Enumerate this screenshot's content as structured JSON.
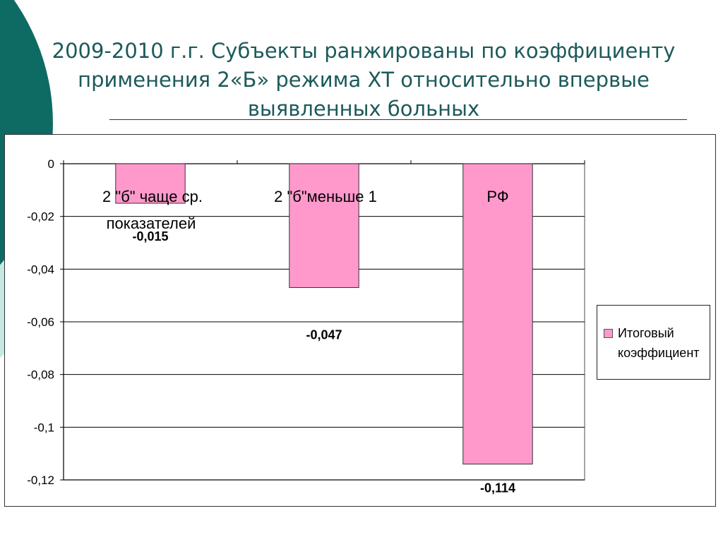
{
  "slide": {
    "title": "2009-2010 г.г. Субъекты ранжированы по коэффициенту применения  2«Б» режима ХТ относительно впервые выявленных больных"
  },
  "colors": {
    "title": "#1d5a5a",
    "decor_dark": "#0e6b64",
    "decor_light": "#c5e8e3",
    "bar_fill": "#ff99cc",
    "bar_stroke": "#333333"
  },
  "chart_data": {
    "type": "bar",
    "categories": [
      "2 \"б\" чаще ср. показателей",
      "2 \"б\"меньше 1",
      "РФ"
    ],
    "series": [
      {
        "name": "Итоговый коэффициент",
        "values": [
          -0.015,
          -0.047,
          -0.114
        ]
      }
    ],
    "data_labels": [
      "-0,015",
      "-0,047",
      "-0,114"
    ],
    "y_ticks": [
      0,
      -0.02,
      -0.04,
      -0.06,
      -0.08,
      -0.1,
      -0.12
    ],
    "y_tick_labels": [
      "0",
      "-0,02",
      "-0,04",
      "-0,06",
      "-0,08",
      "-0,1",
      "-0,12"
    ],
    "ylim": [
      -0.12,
      0
    ],
    "grid": true,
    "legend_position": "right",
    "xlabel": "",
    "ylabel": ""
  }
}
